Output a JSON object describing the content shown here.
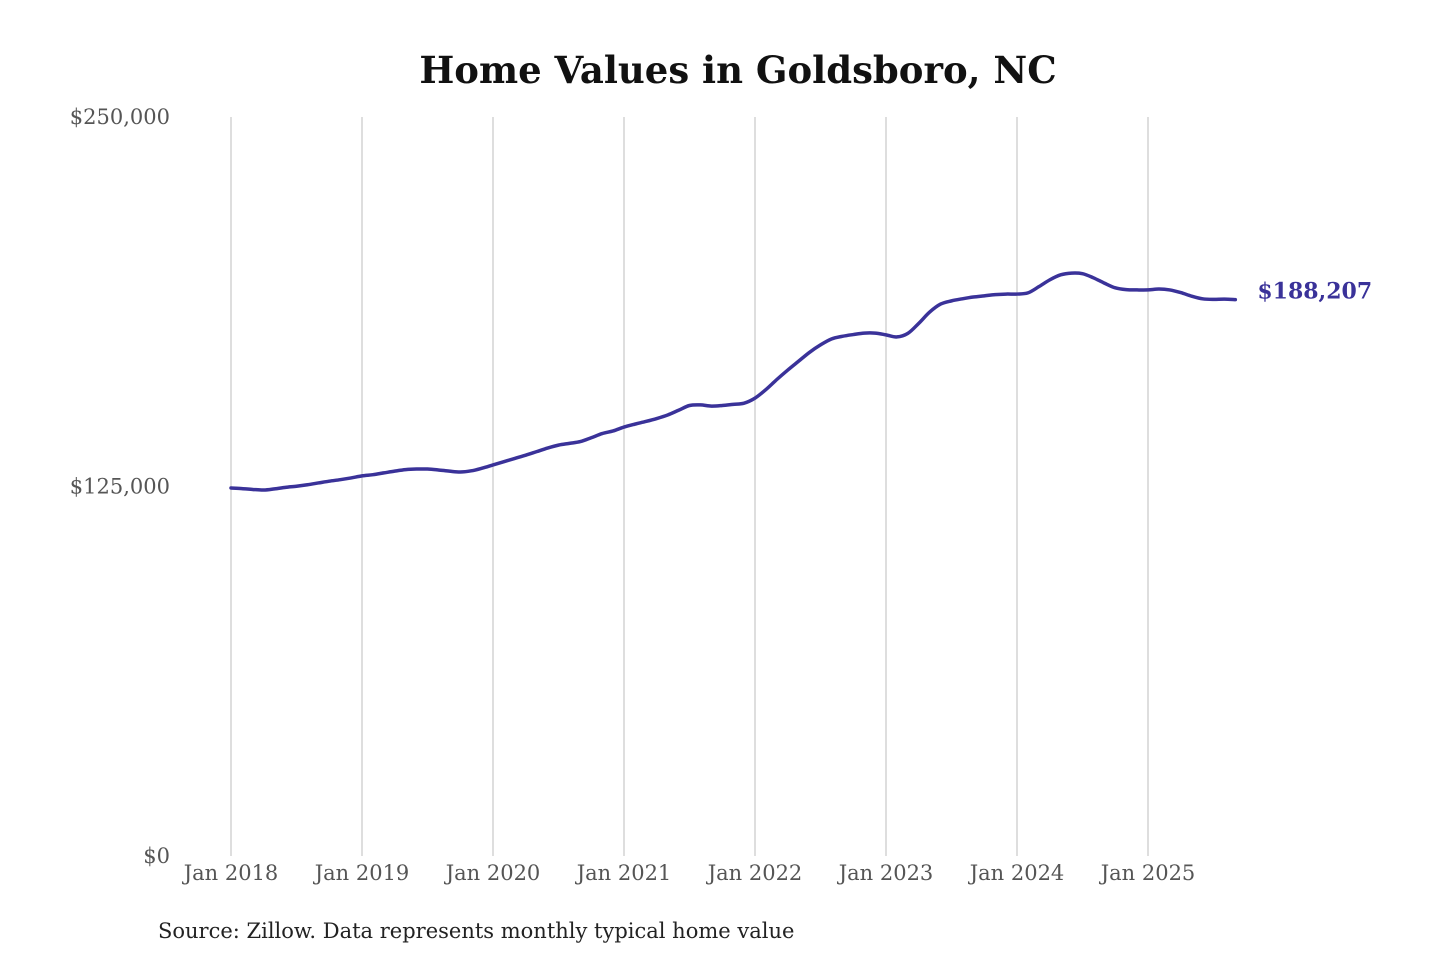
{
  "chart_data": {
    "type": "line",
    "title": "Home Values in Goldsboro, NC",
    "source": "Source: Zillow. Data represents monthly typical home value",
    "ylim": [
      0,
      250000
    ],
    "y_ticks": [
      0,
      125000,
      250000
    ],
    "y_tick_labels": [
      "$0",
      "$125,000",
      "$250,000"
    ],
    "x_tick_labels": [
      "Jan 2018",
      "Jan 2019",
      "Jan 2020",
      "Jan 2021",
      "Jan 2022",
      "Jan 2023",
      "Jan 2024",
      "Jan 2025"
    ],
    "x_start": "2018-01",
    "x_frequency": "monthly",
    "x_grid": true,
    "y_grid": false,
    "line_color": "#3a3299",
    "end_label": "$188,207",
    "series": [
      {
        "values": [
          124500,
          124300,
          124000,
          123800,
          124200,
          124700,
          125100,
          125600,
          126200,
          126800,
          127300,
          127900,
          128600,
          129000,
          129600,
          130200,
          130700,
          130900,
          130900,
          130600,
          130200,
          129900,
          130300,
          131200,
          132300,
          133400,
          134500,
          135600,
          136800,
          138000,
          139000,
          139600,
          140200,
          141500,
          142900,
          143800,
          145100,
          146100,
          147000,
          148000,
          149200,
          150800,
          152400,
          152600,
          152200,
          152400,
          152800,
          153200,
          154900,
          157800,
          161200,
          164400,
          167400,
          170400,
          172900,
          174900,
          175800,
          176400,
          176900,
          176900,
          176300,
          175600,
          176800,
          180200,
          184000,
          186700,
          187800,
          188500,
          189100,
          189500,
          189900,
          190100,
          190100,
          190500,
          192600,
          194900,
          196600,
          197200,
          197000,
          195600,
          193800,
          192200,
          191600,
          191500,
          191500,
          191800,
          191500,
          190600,
          189400,
          188500,
          188300,
          188400,
          188207
        ]
      }
    ]
  }
}
